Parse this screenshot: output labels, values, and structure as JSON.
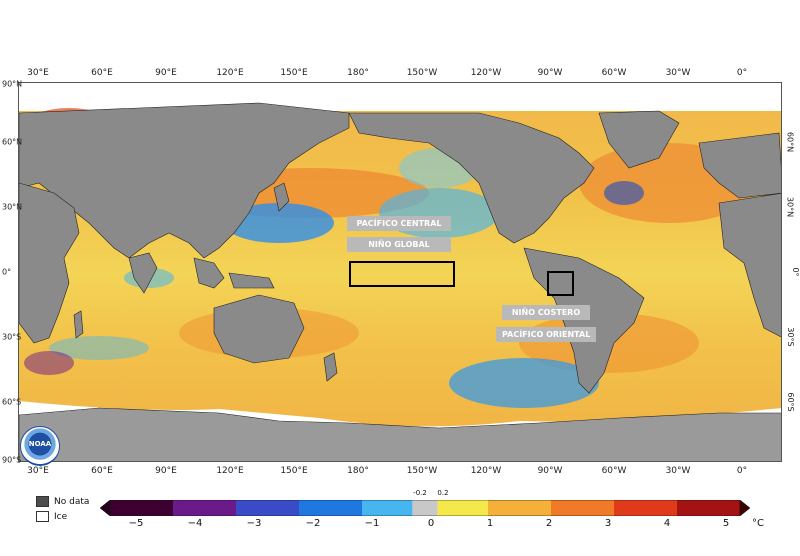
{
  "map": {
    "lon_labels_top": [
      "30°E",
      "60°E",
      "90°E",
      "120°E",
      "150°E",
      "180°",
      "150°W",
      "120°W",
      "90°W",
      "60°W",
      "30°W",
      "0°"
    ],
    "lon_labels_bottom": [
      "30°E",
      "60°E",
      "90°E",
      "120°E",
      "150°E",
      "180°",
      "150°W",
      "120°W",
      "90°W",
      "60°W",
      "30°W",
      "0°"
    ],
    "lat_labels_left": [
      "90°N",
      "60°N",
      "30°N",
      "0°",
      "30°S",
      "60°S",
      "90°S"
    ],
    "lat_labels_right": [
      "60°N",
      "30°N",
      "0°",
      "30°S",
      "60°S"
    ],
    "regions": {
      "pacifico_central": "PACÍFICO CENTRAL",
      "nino_global": "NIÑO GLOBAL",
      "nino_costero": "NIÑO COSTERO",
      "pacifico_oriental": "PACÍFICO ORIENTAL"
    },
    "logo_text": "NOAA"
  },
  "legend": {
    "no_data": "No data",
    "ice": "Ice",
    "no_data_color": "#4d4d4d",
    "ice_color": "#ffffff"
  },
  "colorbar": {
    "ticks": [
      "−5",
      "−4",
      "−3",
      "−2",
      "−1",
      "0",
      "1",
      "2",
      "3",
      "4",
      "5"
    ],
    "small_ticks": [
      "-0.2",
      "0.2"
    ],
    "unit": "°C",
    "colors": [
      "#3d0030",
      "#6a1a8a",
      "#3a4bc8",
      "#1f77e0",
      "#47b6f0",
      "#c8c8c8",
      "#f5e84a",
      "#f5b03a",
      "#f07a28",
      "#e03a1a",
      "#a51212",
      "#5a0505"
    ]
  }
}
